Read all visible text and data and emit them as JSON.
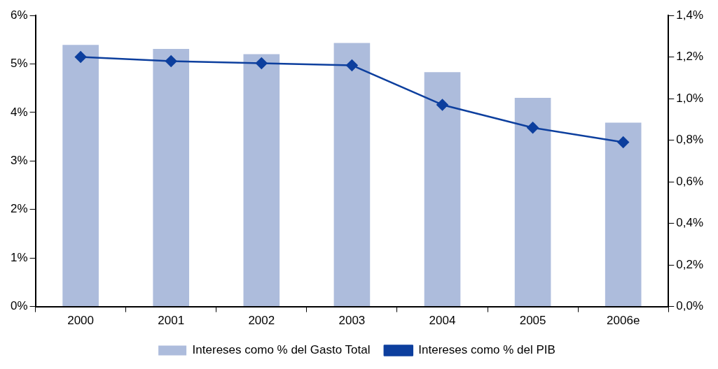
{
  "chart_data": {
    "type": "bar",
    "categories": [
      "2000",
      "2001",
      "2002",
      "2003",
      "2004",
      "2005",
      "2006e"
    ],
    "series": [
      {
        "name": "Intereses como % del Gasto Total",
        "color": "#adbcdc",
        "values": [
          5.39,
          5.31,
          5.2,
          5.43,
          4.83,
          4.3,
          3.79
        ]
      },
      {
        "name": "Intereses como % del PIB",
        "type": "line",
        "axis": "y2",
        "color": "#0d3f9e",
        "marker": "diamond",
        "values": [
          1.2,
          1.18,
          1.17,
          1.16,
          0.97,
          0.86,
          0.79
        ]
      }
    ],
    "ylim": [
      0,
      6
    ],
    "yticks": [
      {
        "value": 0,
        "label": "0%"
      },
      {
        "value": 1,
        "label": "1%"
      },
      {
        "value": 2,
        "label": "2%"
      },
      {
        "value": 3,
        "label": "3%"
      },
      {
        "value": 4,
        "label": "4%"
      },
      {
        "value": 5,
        "label": "5%"
      },
      {
        "value": 6,
        "label": "6%"
      }
    ],
    "y2lim": [
      0,
      1.4
    ],
    "y2ticks": [
      {
        "value": 0,
        "label": "0,0%"
      },
      {
        "value": 0.2,
        "label": "0,2%"
      },
      {
        "value": 0.4,
        "label": "0,4%"
      },
      {
        "value": 0.6,
        "label": "0,6%"
      },
      {
        "value": 0.8,
        "label": "0,8%"
      },
      {
        "value": 1,
        "label": "1,0%"
      },
      {
        "value": 1.2,
        "label": "1,2%"
      },
      {
        "value": 1.4,
        "label": "1,4%"
      }
    ],
    "grid": false,
    "legend": "bottom"
  }
}
